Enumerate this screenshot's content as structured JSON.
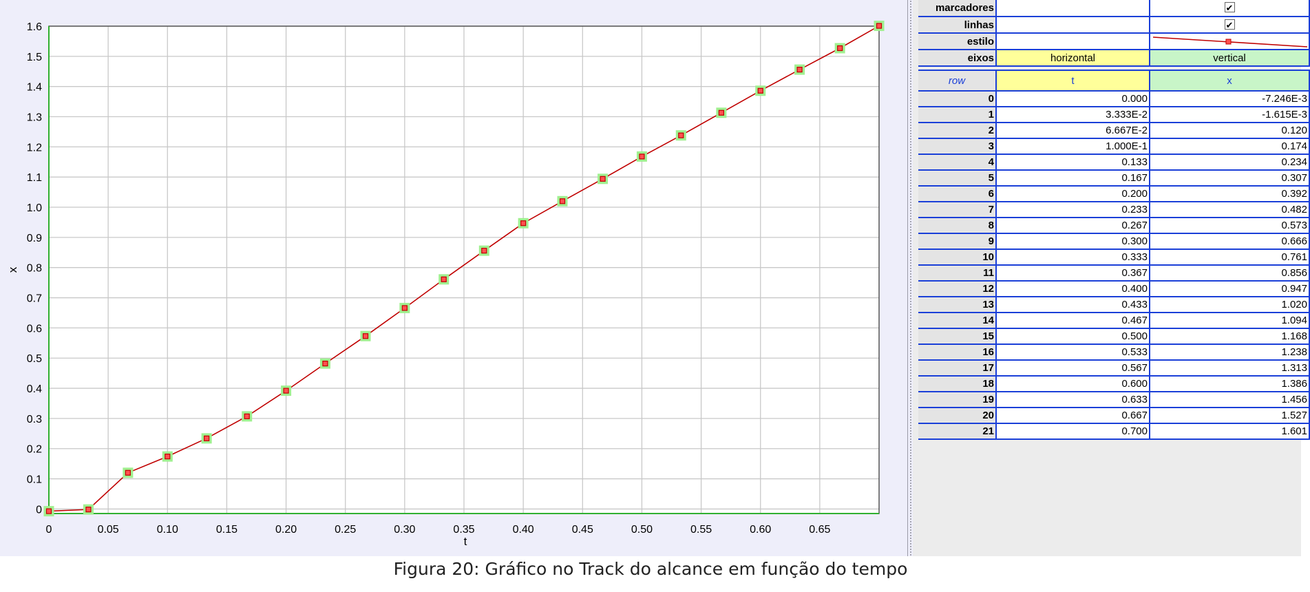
{
  "chart_data": {
    "type": "line",
    "xlabel": "t",
    "ylabel": "x",
    "xlim": [
      0,
      0.7
    ],
    "ylim": [
      -0.015,
      1.6
    ],
    "x_ticks": [
      "0",
      "0.05",
      "0.10",
      "0.15",
      "0.20",
      "0.25",
      "0.30",
      "0.35",
      "0.40",
      "0.45",
      "0.50",
      "0.55",
      "0.60",
      "0.65"
    ],
    "y_ticks": [
      "0",
      "0.1",
      "0.2",
      "0.3",
      "0.4",
      "0.5",
      "0.6",
      "0.7",
      "0.8",
      "0.9",
      "1.0",
      "1.1",
      "1.2",
      "1.3",
      "1.4",
      "1.5",
      "1.6"
    ],
    "grid": true,
    "series": [
      {
        "x": [
          0.0,
          0.03333,
          0.06667,
          0.1,
          0.133,
          0.167,
          0.2,
          0.233,
          0.267,
          0.3,
          0.333,
          0.367,
          0.4,
          0.433,
          0.467,
          0.5,
          0.533,
          0.567,
          0.6,
          0.633,
          0.667,
          0.7
        ],
        "y": [
          -0.007246,
          -0.001615,
          0.12,
          0.174,
          0.234,
          0.307,
          0.392,
          0.482,
          0.573,
          0.666,
          0.761,
          0.856,
          0.947,
          1.02,
          1.094,
          1.168,
          1.238,
          1.313,
          1.386,
          1.456,
          1.527,
          1.601
        ]
      }
    ]
  },
  "colors": {
    "line": "#c00000",
    "marker_fill": "#ff5050",
    "marker_halo": "#a0f090",
    "axis": "#30b030",
    "grid": "#c8c8c8",
    "panel_bg": "#eeeefa",
    "table_border": "#1a3fd8"
  },
  "properties_table": {
    "rows": [
      {
        "label": "marcadores",
        "col1": "",
        "col2": "✔"
      },
      {
        "label": "linhas",
        "col1": "",
        "col2": "✔"
      },
      {
        "label": "estilo",
        "col1": "",
        "col2": ""
      },
      {
        "label": "eixos",
        "col1": "horizontal",
        "col2": "vertical"
      }
    ]
  },
  "data_table": {
    "headers": [
      "row",
      "t",
      "x"
    ],
    "rows": [
      [
        "0",
        "0.000",
        "-7.246E-3"
      ],
      [
        "1",
        "3.333E-2",
        "-1.615E-3"
      ],
      [
        "2",
        "6.667E-2",
        "0.120"
      ],
      [
        "3",
        "1.000E-1",
        "0.174"
      ],
      [
        "4",
        "0.133",
        "0.234"
      ],
      [
        "5",
        "0.167",
        "0.307"
      ],
      [
        "6",
        "0.200",
        "0.392"
      ],
      [
        "7",
        "0.233",
        "0.482"
      ],
      [
        "8",
        "0.267",
        "0.573"
      ],
      [
        "9",
        "0.300",
        "0.666"
      ],
      [
        "10",
        "0.333",
        "0.761"
      ],
      [
        "11",
        "0.367",
        "0.856"
      ],
      [
        "12",
        "0.400",
        "0.947"
      ],
      [
        "13",
        "0.433",
        "1.020"
      ],
      [
        "14",
        "0.467",
        "1.094"
      ],
      [
        "15",
        "0.500",
        "1.168"
      ],
      [
        "16",
        "0.533",
        "1.238"
      ],
      [
        "17",
        "0.567",
        "1.313"
      ],
      [
        "18",
        "0.600",
        "1.386"
      ],
      [
        "19",
        "0.633",
        "1.456"
      ],
      [
        "20",
        "0.667",
        "1.527"
      ],
      [
        "21",
        "0.700",
        "1.601"
      ]
    ]
  },
  "caption": "Figura 20: Gráfico no Track do alcance em função do tempo"
}
